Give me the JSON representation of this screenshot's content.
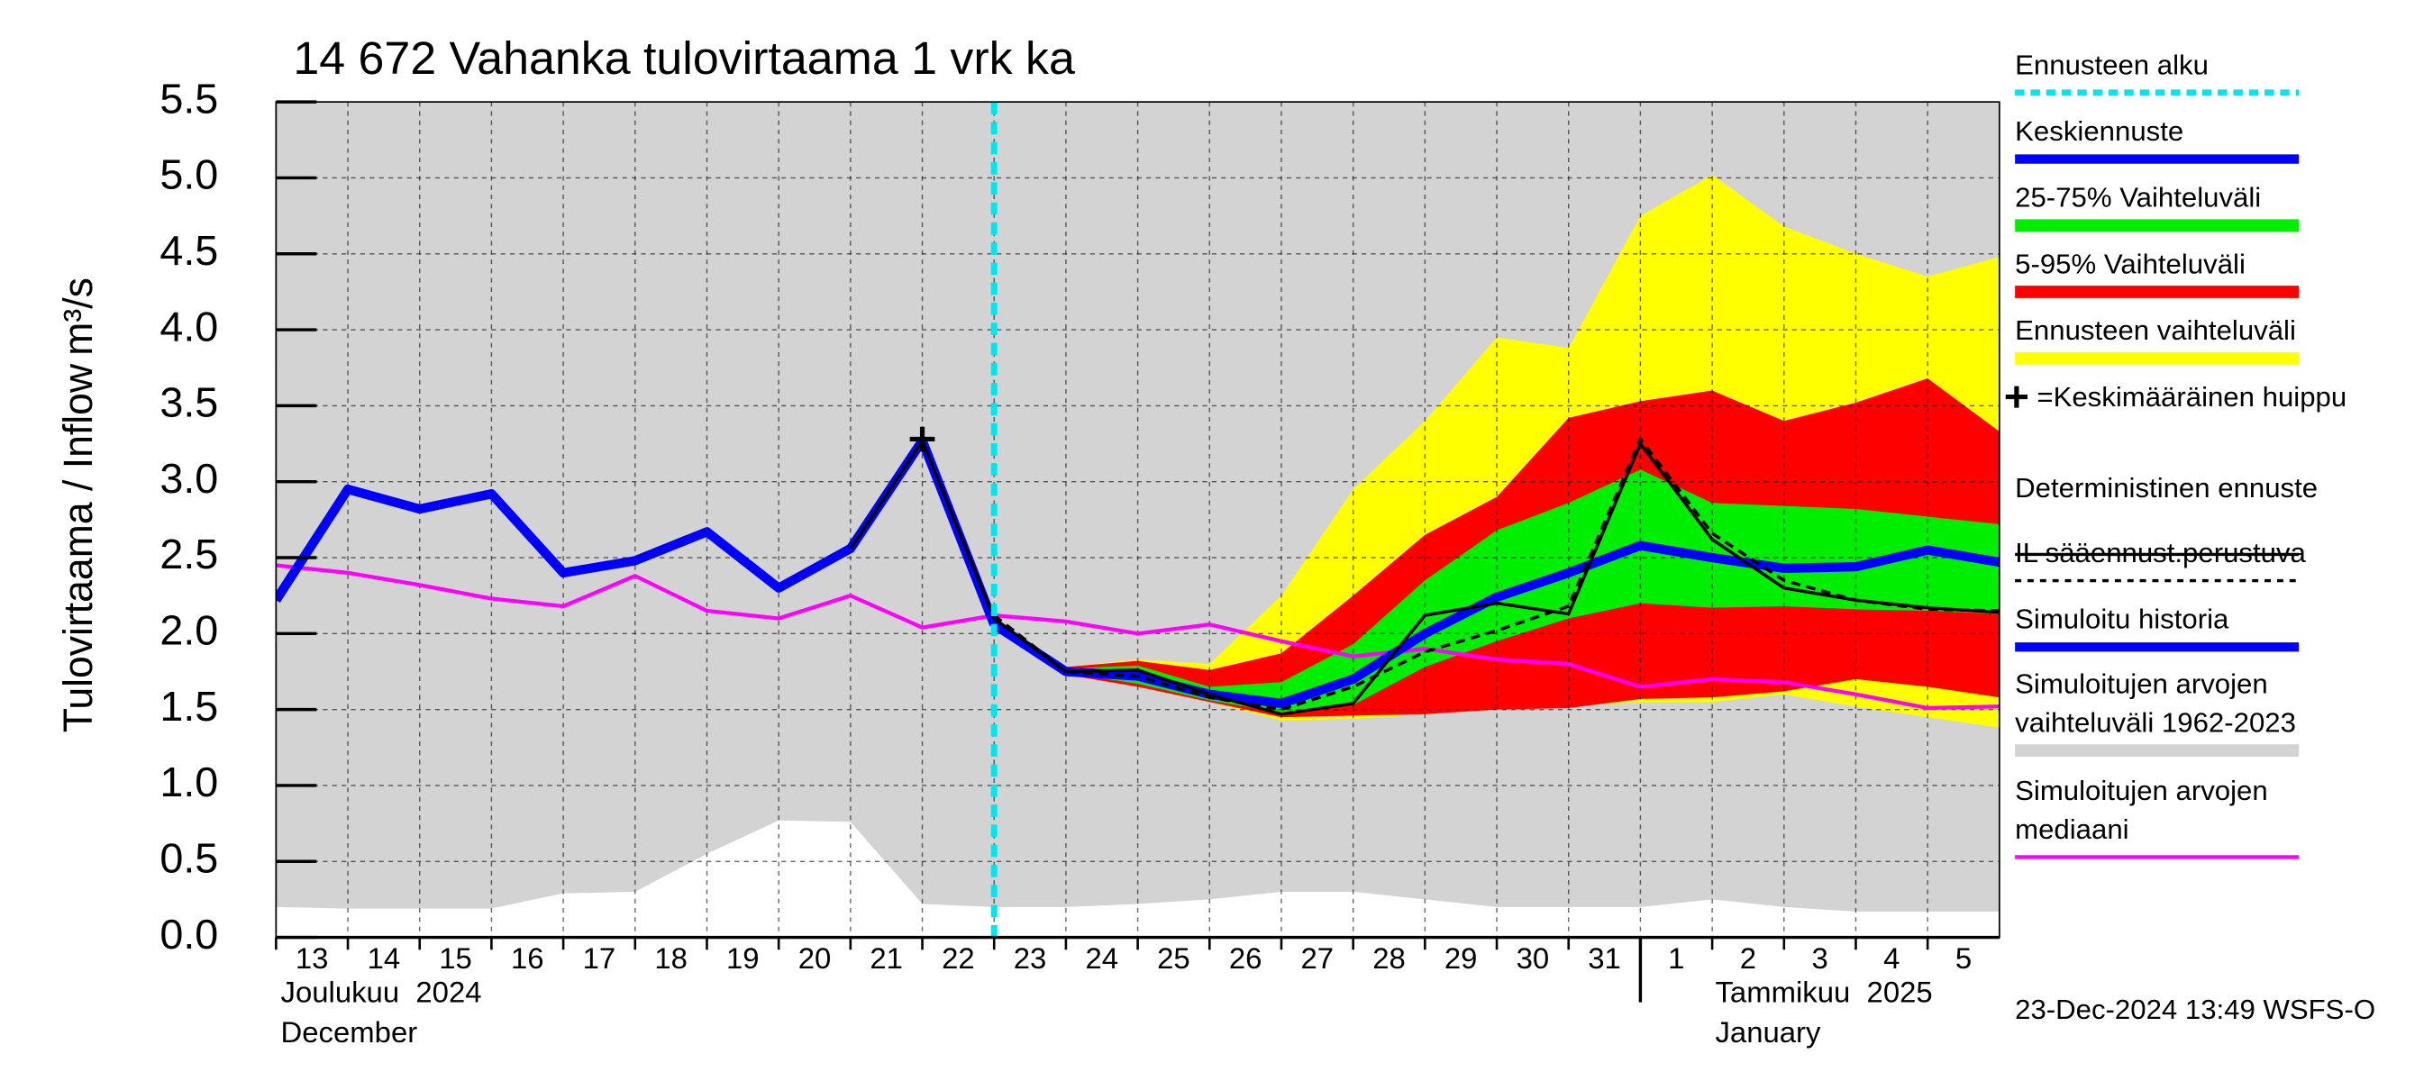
{
  "chart_data": {
    "type": "line",
    "title": "14 672 Vahanka tulovirtaama 1 vrk ka",
    "y_label": "Tulovirtaama / Inflow",
    "y_unit": "m³/s",
    "months": [
      {
        "x": 0,
        "label": "Joulukuu  2024",
        "label_en": "December"
      },
      {
        "x": 19,
        "label": "Tammikuu  2025",
        "label_en": "January"
      }
    ],
    "timestamp": "23-Dec-2024 13:49 WSFS-O",
    "x": [
      0,
      1,
      2,
      3,
      4,
      5,
      6,
      7,
      8,
      9,
      10,
      11,
      12,
      13,
      14,
      15,
      16,
      17,
      18,
      19,
      20,
      21,
      22,
      23,
      24
    ],
    "xlim": [
      0,
      24
    ],
    "xticks": [
      {
        "value": 0,
        "label": "13"
      },
      {
        "value": 1,
        "label": "14"
      },
      {
        "value": 2,
        "label": "15"
      },
      {
        "value": 3,
        "label": "16"
      },
      {
        "value": 4,
        "label": "17"
      },
      {
        "value": 5,
        "label": "18"
      },
      {
        "value": 6,
        "label": "19"
      },
      {
        "value": 7,
        "label": "20"
      },
      {
        "value": 8,
        "label": "21"
      },
      {
        "value": 9,
        "label": "22"
      },
      {
        "value": 10,
        "label": "23"
      },
      {
        "value": 11,
        "label": "24"
      },
      {
        "value": 12,
        "label": "25"
      },
      {
        "value": 13,
        "label": "26"
      },
      {
        "value": 14,
        "label": "27"
      },
      {
        "value": 15,
        "label": "28"
      },
      {
        "value": 16,
        "label": "29"
      },
      {
        "value": 17,
        "label": "30"
      },
      {
        "value": 18,
        "label": "31"
      },
      {
        "value": 19,
        "label": "1"
      },
      {
        "value": 20,
        "label": "2"
      },
      {
        "value": 21,
        "label": "3"
      },
      {
        "value": 22,
        "label": "4"
      },
      {
        "value": 23,
        "label": "5"
      }
    ],
    "ylim": [
      0,
      5.5
    ],
    "yticks": [
      {
        "value": 0,
        "label": "0.0"
      },
      {
        "value": 0.5,
        "label": "0.5"
      },
      {
        "value": 1,
        "label": "1.0"
      },
      {
        "value": 1.5,
        "label": "1.5"
      },
      {
        "value": 2,
        "label": "2.0"
      },
      {
        "value": 2.5,
        "label": "2.5"
      },
      {
        "value": 3,
        "label": "3.0"
      },
      {
        "value": 3.5,
        "label": "3.5"
      },
      {
        "value": 4,
        "label": "4.0"
      },
      {
        "value": 4.5,
        "label": "4.5"
      },
      {
        "value": 5,
        "label": "5.0"
      },
      {
        "value": 5.5,
        "label": "5.5"
      }
    ],
    "grid": true,
    "forecast_start": {
      "name": "Ennusteen alku",
      "x": 10,
      "color": "#00e5ee"
    },
    "peak": {
      "name": "=Keskimääräinen huippu",
      "x": 9,
      "value": 3.28,
      "color": "#000000"
    },
    "series": [
      {
        "name": "Keskiennuste",
        "color": "#0000ff",
        "style": "line",
        "width": 6,
        "values": [
          null,
          null,
          null,
          null,
          null,
          null,
          null,
          null,
          null,
          null,
          2.06,
          1.75,
          1.72,
          1.6,
          1.54,
          1.7,
          2.0,
          2.24,
          2.4,
          2.58,
          2.5,
          2.43,
          2.44,
          2.55,
          2.47
        ]
      },
      {
        "name": "25-75% Vaihteluväli",
        "color": "#00ee00",
        "style": "band",
        "upper": [
          null,
          null,
          null,
          null,
          null,
          null,
          null,
          null,
          null,
          null,
          2.06,
          1.77,
          1.79,
          1.65,
          1.68,
          1.93,
          2.35,
          2.68,
          2.86,
          3.08,
          2.86,
          2.84,
          2.82,
          2.77,
          2.72
        ],
        "lower": [
          null,
          null,
          null,
          null,
          null,
          null,
          null,
          null,
          null,
          null,
          2.06,
          1.74,
          1.67,
          1.56,
          1.48,
          1.53,
          1.78,
          1.95,
          2.1,
          2.2,
          2.17,
          2.18,
          2.16,
          2.15,
          2.13
        ]
      },
      {
        "name": "5-95% Vaihteluväli",
        "color": "#ff0000",
        "style": "band",
        "upper": [
          null,
          null,
          null,
          null,
          null,
          null,
          null,
          null,
          null,
          null,
          2.06,
          1.78,
          1.82,
          1.76,
          1.87,
          2.25,
          2.65,
          2.9,
          3.42,
          3.53,
          3.6,
          3.4,
          3.52,
          3.68,
          3.33
        ],
        "lower": [
          null,
          null,
          null,
          null,
          null,
          null,
          null,
          null,
          null,
          null,
          2.06,
          1.73,
          1.65,
          1.55,
          1.45,
          1.46,
          1.47,
          1.5,
          1.51,
          1.57,
          1.58,
          1.62,
          1.7,
          1.65,
          1.58
        ]
      },
      {
        "name": "Ennusteen vaihteluväli",
        "color": "#ffff00",
        "style": "band",
        "upper": [
          null,
          null,
          null,
          null,
          null,
          null,
          null,
          null,
          null,
          null,
          2.06,
          1.78,
          1.83,
          1.8,
          2.25,
          2.95,
          3.4,
          3.95,
          3.88,
          4.75,
          5.02,
          4.68,
          4.5,
          4.35,
          4.48
        ],
        "lower": [
          null,
          null,
          null,
          null,
          null,
          null,
          null,
          null,
          null,
          null,
          2.06,
          1.73,
          1.65,
          1.55,
          1.43,
          1.44,
          1.47,
          1.5,
          1.52,
          1.55,
          1.55,
          1.6,
          1.52,
          1.45,
          1.38
        ]
      },
      {
        "name": "Deterministinen ennuste",
        "color": "#000000",
        "style": "line",
        "width": 2,
        "values": [
          null,
          null,
          null,
          null,
          null,
          null,
          null,
          null,
          2.56,
          3.27,
          2.1,
          1.75,
          1.76,
          1.6,
          1.47,
          1.54,
          2.12,
          2.2,
          2.13,
          3.25,
          2.62,
          2.3,
          2.22,
          2.17,
          2.14
        ]
      },
      {
        "name": "IL sääennust.perustuva",
        "color": "#000000",
        "style": "dashed",
        "width": 2,
        "values": [
          null,
          null,
          null,
          null,
          null,
          null,
          null,
          null,
          null,
          null,
          2.12,
          1.75,
          1.72,
          1.58,
          1.5,
          1.65,
          1.88,
          2.02,
          2.18,
          3.28,
          2.66,
          2.35,
          2.22,
          2.16,
          2.15
        ]
      },
      {
        "name": "Simuloitu historia",
        "color": "#0000ff",
        "style": "line",
        "width": 6,
        "values": [
          2.22,
          2.95,
          2.82,
          2.92,
          2.4,
          2.48,
          2.67,
          2.3,
          2.56,
          3.27,
          2.06,
          null,
          null,
          null,
          null,
          null,
          null,
          null,
          null,
          null,
          null,
          null,
          null,
          null,
          null
        ]
      },
      {
        "name": "Simuloitujen arvojen vaihteluväli 1962-2023",
        "color": "#d3d3d3",
        "style": "band",
        "upper": [
          5.5,
          5.5,
          5.5,
          5.5,
          5.5,
          5.5,
          5.5,
          5.5,
          5.5,
          5.5,
          5.5,
          5.5,
          5.5,
          5.5,
          5.5,
          5.5,
          5.5,
          5.5,
          5.5,
          5.5,
          5.5,
          5.5,
          5.5,
          5.5,
          5.5
        ],
        "lower": [
          0.2,
          0.19,
          0.19,
          0.19,
          0.29,
          0.3,
          0.55,
          0.77,
          0.76,
          0.22,
          0.2,
          0.2,
          0.22,
          0.25,
          0.3,
          0.3,
          0.25,
          0.2,
          0.2,
          0.2,
          0.25,
          0.2,
          0.17,
          0.17,
          0.17
        ]
      },
      {
        "name": "Simuloitujen arvojen mediaani",
        "color": "#ff00ff",
        "style": "line",
        "width": 2.5,
        "values": [
          2.45,
          2.4,
          2.32,
          2.23,
          2.18,
          2.38,
          2.15,
          2.1,
          2.25,
          2.04,
          2.12,
          2.08,
          2.0,
          2.06,
          1.95,
          1.85,
          1.9,
          1.83,
          1.8,
          1.65,
          1.7,
          1.68,
          1.6,
          1.51,
          1.52
        ]
      }
    ]
  }
}
